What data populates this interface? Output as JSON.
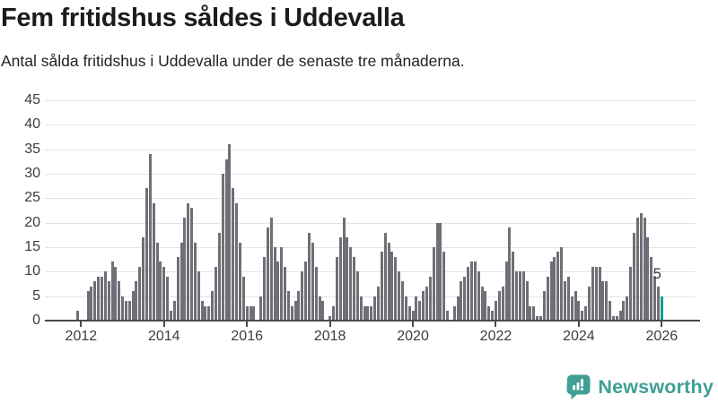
{
  "header": {
    "title": "Fem fritidshus såldes i Uddevalla",
    "subtitle": "Antal sålda fritidshus i Uddevalla under de senaste tre månaderna."
  },
  "chart_data": {
    "type": "bar",
    "title": "Fem fritidshus såldes i Uddevalla",
    "subtitle": "Antal sålda fritidshus i Uddevalla under de senaste tre månaderna.",
    "x_unit": "month",
    "values": [
      2,
      0,
      0,
      6,
      7,
      8,
      9,
      9,
      10,
      8,
      12,
      11,
      8,
      5,
      4,
      4,
      6,
      8,
      11,
      17,
      27,
      34,
      24,
      16,
      12,
      11,
      9,
      2,
      4,
      13,
      16,
      21,
      24,
      23,
      16,
      10,
      4,
      3,
      3,
      6,
      11,
      18,
      30,
      33,
      36,
      27,
      24,
      16,
      9,
      3,
      3,
      3,
      0,
      5,
      13,
      19,
      21,
      15,
      12,
      15,
      11,
      6,
      3,
      4,
      6,
      10,
      12,
      18,
      16,
      11,
      5,
      4,
      0,
      1,
      3,
      13,
      17,
      21,
      17,
      15,
      13,
      10,
      5,
      3,
      3,
      3,
      5,
      7,
      14,
      18,
      16,
      14,
      13,
      10,
      8,
      5,
      3,
      2,
      5,
      4,
      6,
      7,
      9,
      15,
      20,
      20,
      14,
      2,
      0,
      3,
      5,
      8,
      9,
      11,
      12,
      12,
      10,
      7,
      6,
      3,
      2,
      4,
      6,
      7,
      12,
      19,
      14,
      10,
      10,
      10,
      8,
      3,
      3,
      1,
      1,
      6,
      9,
      12,
      13,
      14,
      15,
      8,
      9,
      5,
      6,
      4,
      2,
      3,
      7,
      11,
      11,
      11,
      8,
      8,
      4,
      1,
      1,
      2,
      4,
      5,
      11,
      18,
      21,
      22,
      21,
      17,
      13,
      9,
      7,
      5
    ],
    "ylim": [
      0,
      45
    ],
    "y_ticks": [
      0,
      5,
      10,
      15,
      20,
      25,
      30,
      35,
      40,
      45
    ],
    "x_ticks": [
      {
        "label": "2012",
        "index": 1
      },
      {
        "label": "2014",
        "index": 25
      },
      {
        "label": "2016",
        "index": 49
      },
      {
        "label": "2018",
        "index": 73
      },
      {
        "label": "2020",
        "index": 97
      },
      {
        "label": "2022",
        "index": 121
      },
      {
        "label": "2024",
        "index": 145
      },
      {
        "label": "2026",
        "index": 169
      }
    ],
    "highlight": {
      "index": 169,
      "value": 5,
      "label": "5"
    },
    "grid": true,
    "legend": "none",
    "colors": {
      "bar": "#6f6f77",
      "accent": "#149a93",
      "grid_line": "#e4e4e4",
      "axis_line": "#4b4b4b",
      "axis_text": "#3c3c3c"
    }
  },
  "logo": {
    "text": "Newsworthy",
    "color": "#3f9f97",
    "icon": "newsworthy-chart-bubble-icon"
  }
}
